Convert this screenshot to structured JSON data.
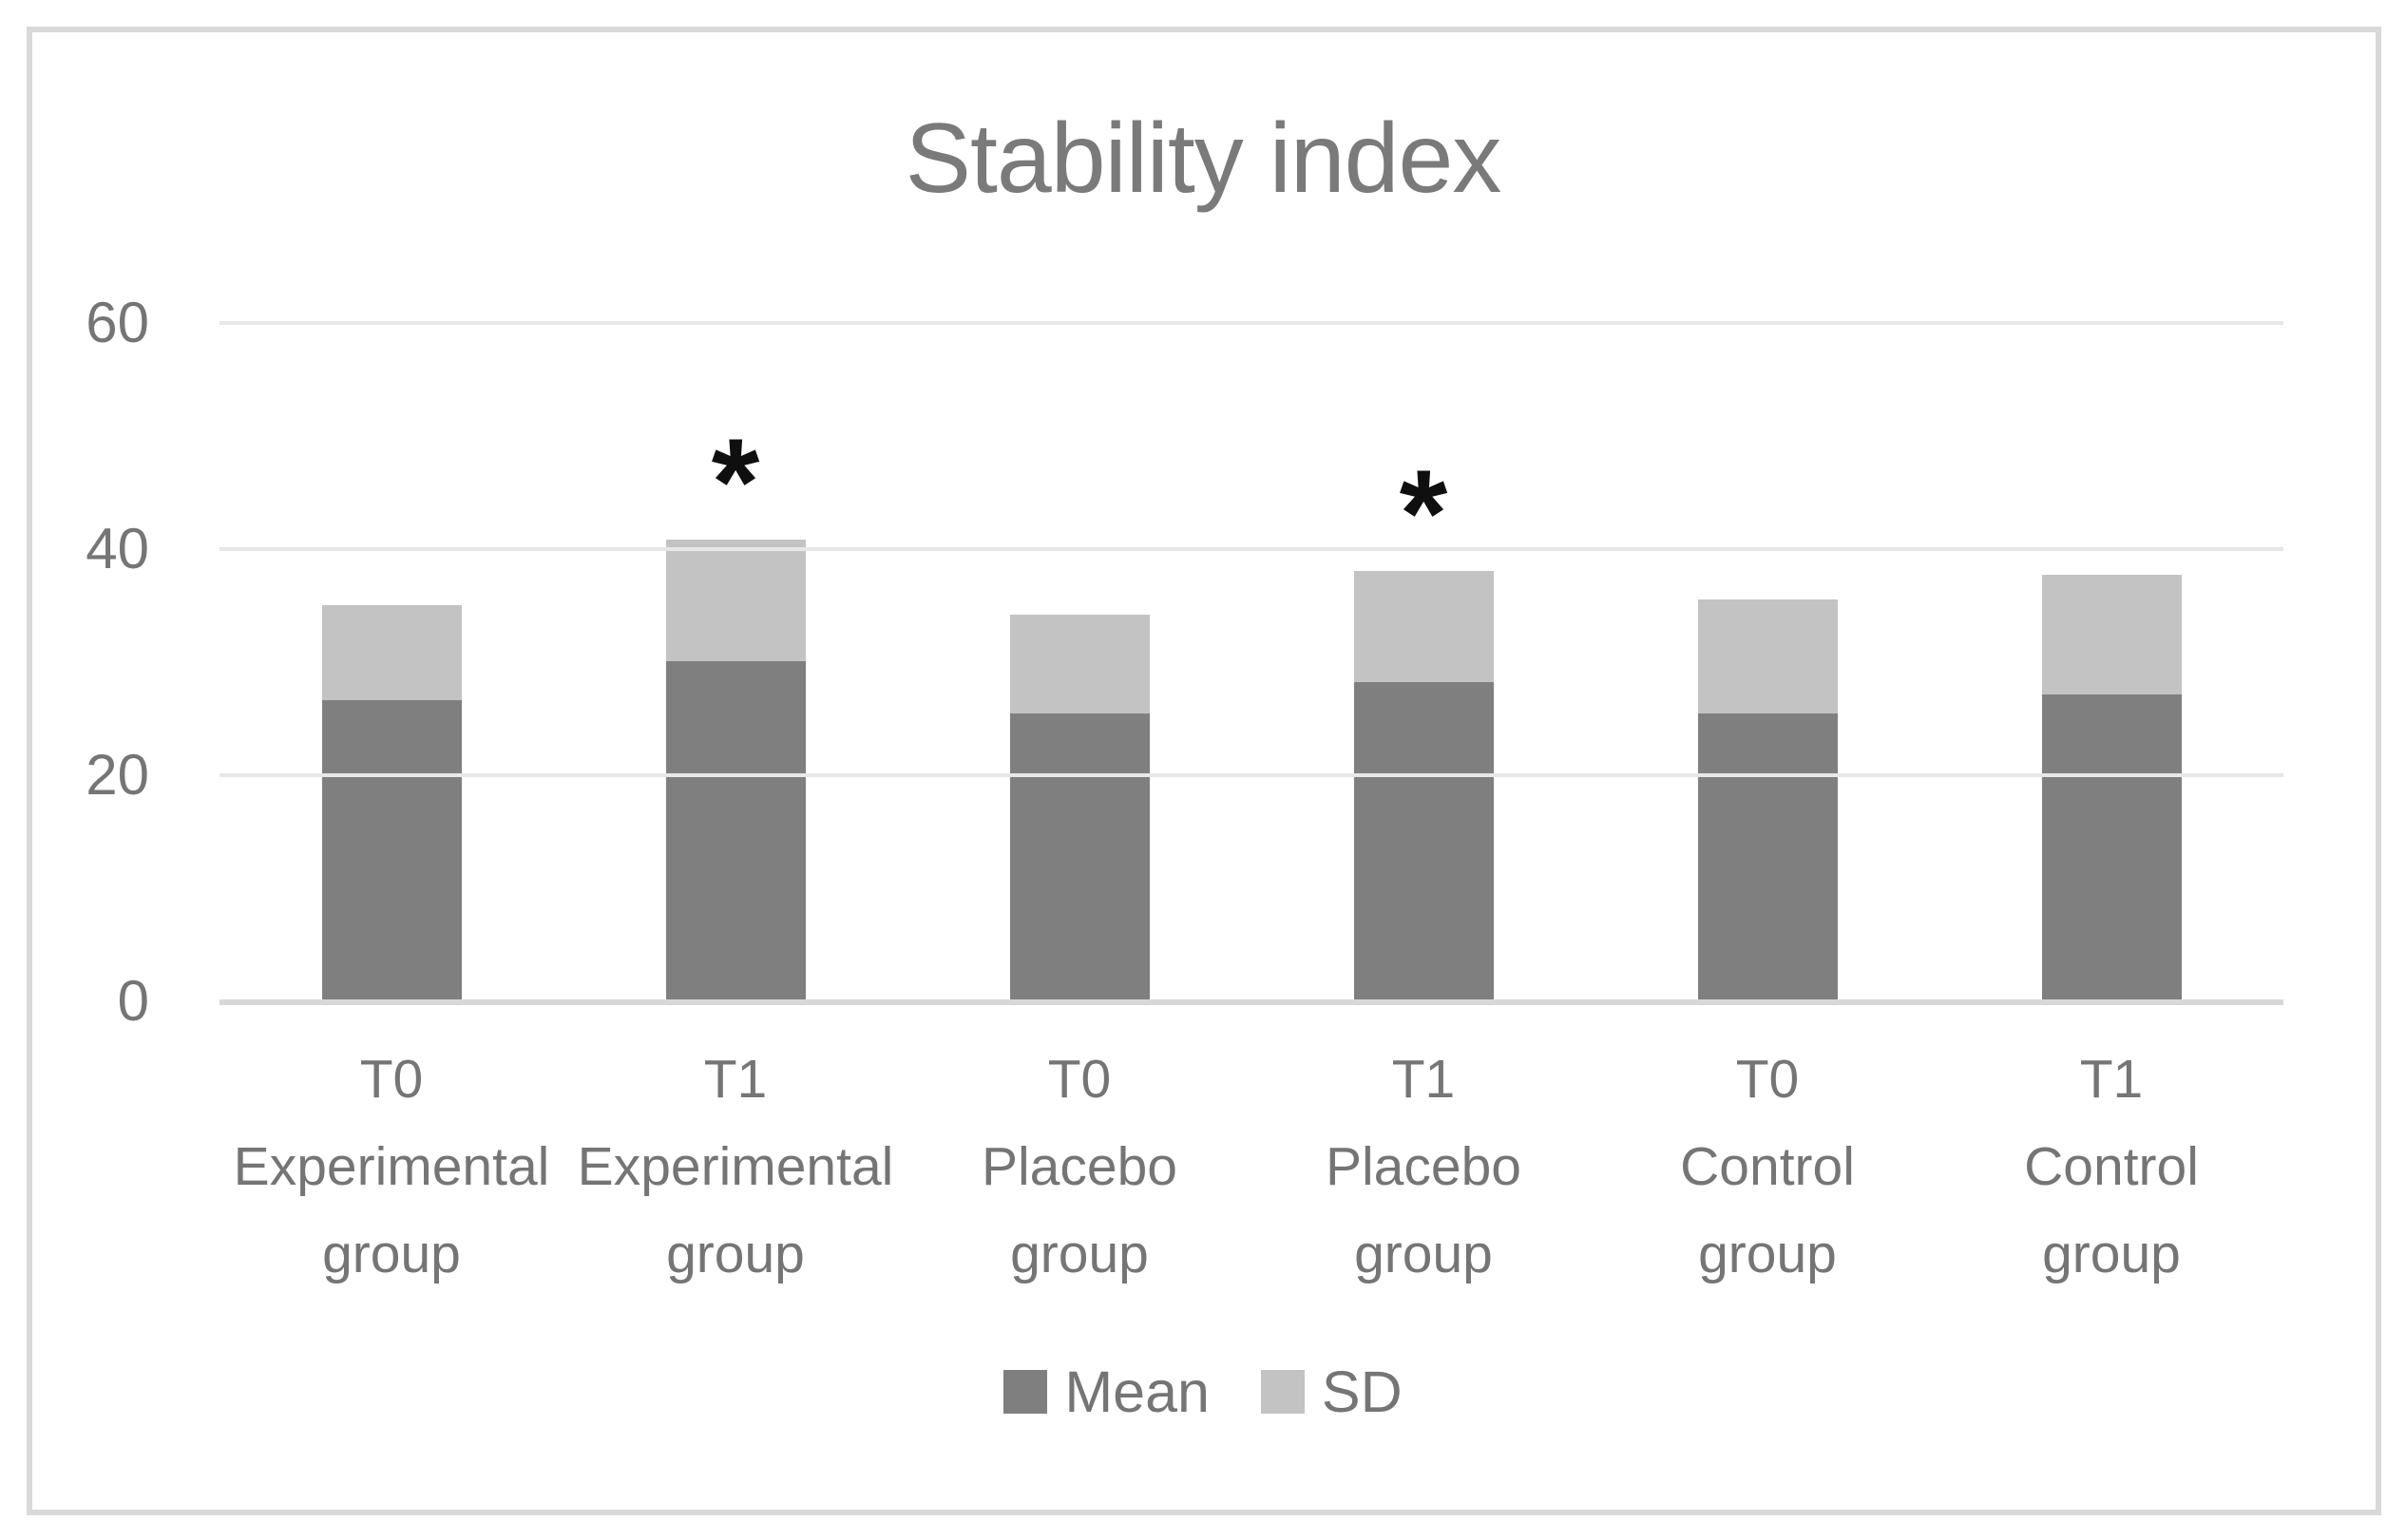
{
  "figure": {
    "border_color": "#d9d9d9",
    "background": "#ffffff"
  },
  "chart_data": {
    "type": "bar",
    "stacked": true,
    "title": "Stability index",
    "title_color": "#7a7a7a",
    "categories": [
      "T0\nExperimental\ngroup",
      "T1\nExperimental\ngroup",
      "T0\nPlacebo\ngroup",
      "T1\nPlacebo\ngroup",
      "T0\nControl\ngroup",
      "T1\nControl\ngroup"
    ],
    "series": [
      {
        "name": "Mean",
        "color": "#7f7f7f",
        "values": [
          26.5,
          29.9,
          25.3,
          28.1,
          25.3,
          27.0
        ]
      },
      {
        "name": "SD",
        "color": "#c3c3c3",
        "values": [
          8.4,
          10.8,
          8.7,
          9.8,
          10.1,
          10.6
        ]
      }
    ],
    "stack_totals": [
      34.9,
      40.7,
      34.0,
      37.9,
      35.4,
      37.6
    ],
    "annotations": [
      {
        "category_index": 1,
        "symbol": "*",
        "meaning": "significance marker"
      },
      {
        "category_index": 3,
        "symbol": "*",
        "meaning": "significance marker"
      }
    ],
    "y_axis": {
      "ticks": [
        0,
        20,
        40,
        60
      ],
      "min": 0,
      "max": 60,
      "label": ""
    },
    "x_axis": {
      "label": ""
    },
    "legend_position": "bottom",
    "gridlines": true,
    "gridline_color": "#e7e7e7",
    "axis_line_color": "#d8d8d8",
    "text_color": "#757575"
  }
}
